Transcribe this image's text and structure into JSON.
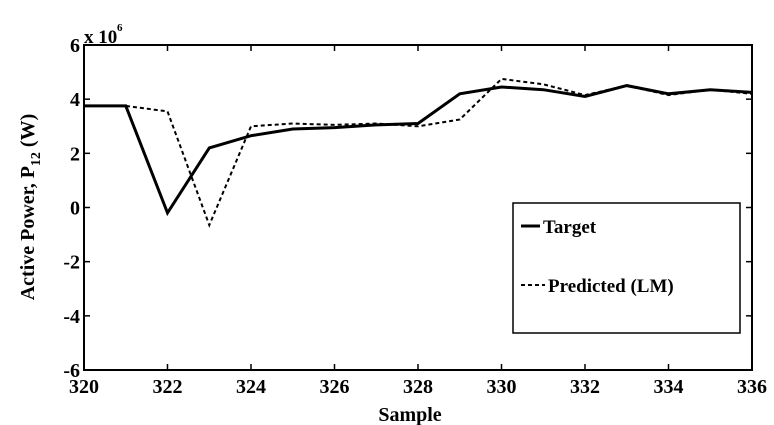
{
  "chart_data": {
    "type": "line",
    "xlabel": "Sample",
    "ylabel_main": "Active Power, P",
    "ylabel_sub": "12",
    "ylabel_unit": " (W)",
    "y_scale_base": "x 10",
    "y_scale_exp": "6",
    "xlim": [
      320,
      336
    ],
    "ylim": [
      -6,
      6
    ],
    "x_ticks": [
      320,
      322,
      324,
      326,
      328,
      330,
      332,
      334,
      336
    ],
    "y_ticks": [
      -6,
      -4,
      -2,
      0,
      2,
      4,
      6
    ],
    "x_tick_labels": [
      "320",
      "322",
      "324",
      "326",
      "328",
      "330",
      "332",
      "334",
      "336"
    ],
    "y_tick_labels": [
      "-6",
      "-4",
      "-2",
      "0",
      "2",
      "4",
      "6"
    ],
    "grid": false,
    "legend_position": "right",
    "series": [
      {
        "name": "Target",
        "style": "solid",
        "color": "#000000",
        "x": [
          320,
          321,
          322,
          323,
          324,
          325,
          326,
          327,
          328,
          329,
          330,
          331,
          332,
          333,
          334,
          335,
          336
        ],
        "y": [
          3.75,
          3.75,
          -0.2,
          2.2,
          2.65,
          2.9,
          2.95,
          3.05,
          3.1,
          4.2,
          4.45,
          4.35,
          4.1,
          4.5,
          4.2,
          4.35,
          4.25
        ]
      },
      {
        "name": "Predicted (LM)",
        "style": "dashed",
        "color": "#000000",
        "x": [
          320,
          321,
          322,
          323,
          324,
          325,
          326,
          327,
          328,
          329,
          330,
          331,
          332,
          333,
          334,
          335,
          336
        ],
        "y": [
          3.75,
          3.75,
          3.55,
          -0.65,
          3.0,
          3.1,
          3.05,
          3.1,
          3.0,
          3.25,
          4.75,
          4.55,
          4.15,
          4.5,
          4.15,
          4.35,
          4.2
        ]
      }
    ]
  }
}
